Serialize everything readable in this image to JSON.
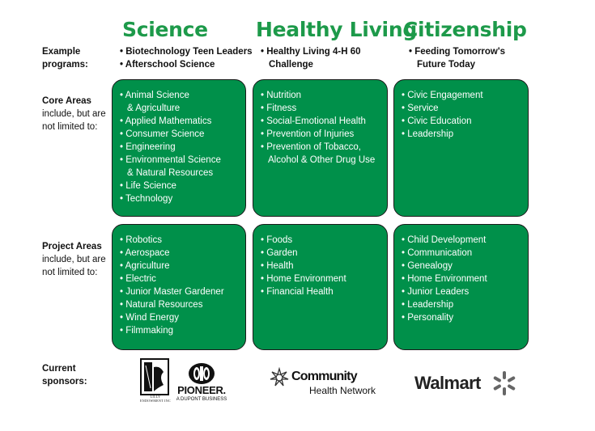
{
  "columns": [
    {
      "title": "Science"
    },
    {
      "title": "Healthy Living"
    },
    {
      "title": "Citizenship"
    }
  ],
  "row_labels": {
    "example_bold": "Example",
    "example_bold2": "programs:",
    "core_bold": "Core Areas",
    "core_rest1": "include, but are",
    "core_rest2": "not limited to:",
    "project_bold": "Project Areas",
    "project_rest1": "include, but are",
    "project_rest2": "not limited to:",
    "sponsors_bold": "Current",
    "sponsors_bold2": "sponsors:"
  },
  "examples": {
    "science": [
      "• Biotechnology Teen Leaders",
      "• Afterschool Science"
    ],
    "healthy": [
      "• Healthy Living 4-H 60 Challenge"
    ],
    "citizenship": [
      "• Feeding Tomorrow's Future Today"
    ]
  },
  "core": {
    "science": [
      [
        "• Animal Science",
        "& Agriculture"
      ],
      [
        "• Applied Mathematics"
      ],
      [
        "• Consumer Science"
      ],
      [
        "• Engineering"
      ],
      [
        "• Environmental Science",
        "& Natural Resources"
      ],
      [
        "• Life Science"
      ],
      [
        "• Technology"
      ]
    ],
    "healthy": [
      [
        "• Nutrition"
      ],
      [
        "• Fitness"
      ],
      [
        "• Social-Emotional Health"
      ],
      [
        "• Prevention of Injuries"
      ],
      [
        "• Prevention of Tobacco,",
        "Alcohol & Other Drug Use"
      ]
    ],
    "citizenship": [
      [
        "• Civic Engagement"
      ],
      [
        "• Service"
      ],
      [
        "• Civic Education"
      ],
      [
        "• Leadership"
      ]
    ]
  },
  "project": {
    "science": [
      "• Robotics",
      "• Aerospace",
      "• Agriculture",
      "• Electric",
      "• Junior Master Gardener",
      "• Natural Resources",
      "• Wind Energy",
      "• Filmmaking"
    ],
    "healthy": [
      "• Foods",
      "• Garden",
      "• Health",
      "• Home Environment",
      "• Financial Health"
    ],
    "citizenship": [
      "• Child Development",
      "• Communication",
      "• Genealogy",
      "• Home Environment",
      "• Junior Leaders",
      "• Leadership",
      "• Personality"
    ]
  },
  "sponsors": {
    "lilly_text": "LILLY ENDOWMENT INC",
    "pioneer_name": "PIONEER.",
    "pioneer_tag": "A DUPONT BUSINESS",
    "chn_line1": "Community",
    "chn_line2": "Health Network",
    "walmart": "Walmart"
  },
  "colors": {
    "green_title": "#1d9a4a",
    "box_green": "#00904a"
  }
}
